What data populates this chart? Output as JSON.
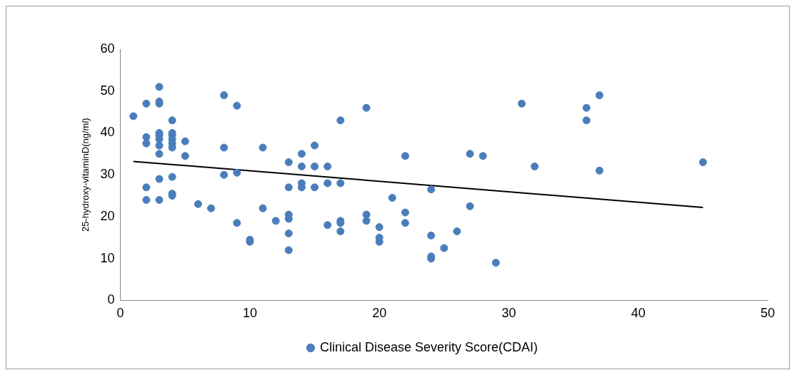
{
  "chart_data": {
    "type": "scatter",
    "ylabel": "25-hydroxy-vitaminD(ng/ml)",
    "xlim": [
      0,
      50
    ],
    "xticks": [
      0,
      10,
      20,
      30,
      40,
      50
    ],
    "ylim": [
      0,
      60
    ],
    "yticks": [
      0,
      10,
      20,
      30,
      40,
      50,
      60
    ],
    "grid": false,
    "legend": "bottom",
    "marker": "circle",
    "series": [
      {
        "name": "Clinical Disease Severity Score(CDAI)",
        "color": "#4a7ebb",
        "x": [
          1,
          2,
          2,
          2,
          2,
          2,
          3,
          3,
          3,
          3,
          3,
          3,
          3,
          3,
          3,
          3,
          4,
          4,
          4,
          4,
          4,
          4,
          4,
          4,
          4,
          5,
          5,
          6,
          7,
          8,
          8,
          8,
          9,
          9,
          9,
          10,
          10,
          11,
          11,
          12,
          13,
          13,
          13,
          13,
          13,
          13,
          14,
          14,
          14,
          14,
          15,
          15,
          15,
          16,
          16,
          16,
          17,
          17,
          17,
          17,
          17,
          19,
          19,
          19,
          20,
          20,
          20,
          21,
          22,
          22,
          22,
          24,
          24,
          24,
          24,
          25,
          26,
          27,
          27,
          28,
          29,
          31,
          32,
          36,
          36,
          37,
          37,
          45
        ],
        "values": [
          44,
          47,
          39,
          37.5,
          27,
          24,
          51,
          47.5,
          47,
          40,
          39.5,
          38.5,
          37,
          35,
          29,
          24,
          43,
          40,
          39.5,
          38.5,
          37.5,
          36.5,
          29.5,
          25.5,
          25,
          38,
          34.5,
          23,
          22,
          49,
          36.5,
          30,
          46.5,
          30.5,
          18.5,
          14.5,
          14,
          36.5,
          22,
          19,
          33,
          27,
          20.5,
          19.5,
          16,
          12,
          35,
          32,
          28,
          27,
          37,
          32,
          27,
          32,
          28,
          18,
          43,
          28,
          19,
          18.5,
          16.5,
          46,
          20.5,
          19,
          17.5,
          15,
          14,
          24.5,
          34.5,
          21,
          18.5,
          26.5,
          15.5,
          10.5,
          10,
          12.5,
          16.5,
          35,
          22.5,
          34.5,
          9,
          47,
          32,
          46,
          43,
          49,
          31,
          33
        ]
      },
      {
        "type": "line",
        "color": "#000000",
        "x": [
          1,
          45
        ],
        "values": [
          33.2,
          22.2
        ],
        "marker": "none",
        "line_style": "solid"
      }
    ]
  }
}
